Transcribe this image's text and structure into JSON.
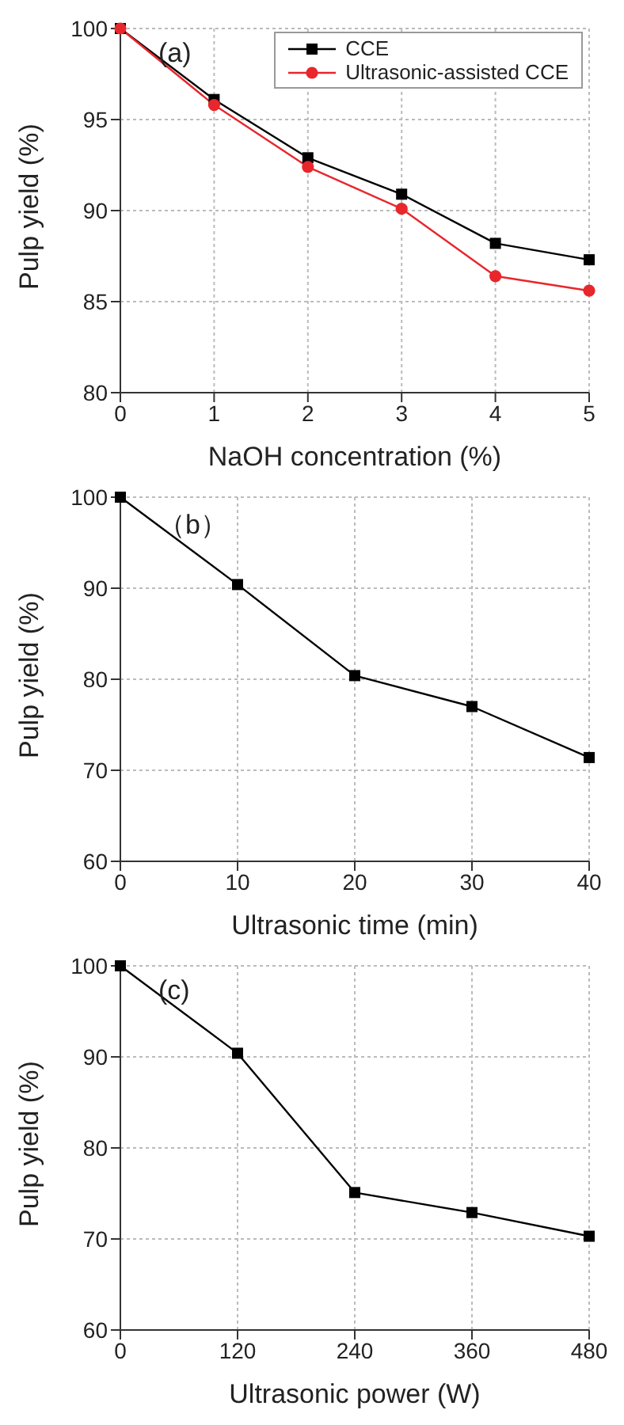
{
  "chart_data": [
    {
      "type": "line",
      "xlabel": "NaOH concentration (%)",
      "ylabel": "Pulp yield (%)",
      "annotations": [
        "(a)"
      ],
      "x": [
        0,
        1,
        2,
        3,
        4,
        5
      ],
      "xlim": [
        0,
        5
      ],
      "xticks": [
        0,
        1,
        2,
        3,
        4,
        5
      ],
      "ylim": [
        80,
        100
      ],
      "yticks": [
        80,
        85,
        90,
        95,
        100
      ],
      "grid": true,
      "legend": "top right",
      "line_style": "solid",
      "series": [
        {
          "name": "CCE",
          "color": "#000000",
          "marker": "square",
          "values": [
            100,
            96.1,
            92.9,
            90.9,
            88.2,
            87.3
          ]
        },
        {
          "name": "Ultrasonic-assisted CCE",
          "color": "#e8262c",
          "marker": "circle",
          "values": [
            100,
            95.8,
            92.4,
            90.1,
            86.4,
            85.6
          ]
        }
      ]
    },
    {
      "type": "line",
      "xlabel": "Ultrasonic time (min)",
      "ylabel": "Pulp yield (%)",
      "annotations": [
        "（b）"
      ],
      "x": [
        0,
        10,
        20,
        30,
        40
      ],
      "xlim": [
        0,
        40
      ],
      "xticks": [
        0,
        10,
        20,
        30,
        40
      ],
      "ylim": [
        60,
        100
      ],
      "yticks": [
        60,
        70,
        80,
        90,
        100
      ],
      "grid": true,
      "marker": "square",
      "line_style": "solid",
      "series": [
        {
          "color": "#000000",
          "values": [
            100,
            90.4,
            80.4,
            77.0,
            71.4
          ]
        }
      ]
    },
    {
      "type": "line",
      "xlabel": "Ultrasonic power (W)",
      "ylabel": "Pulp yield (%)",
      "annotations": [
        "(c)"
      ],
      "x": [
        0,
        120,
        240,
        360,
        480
      ],
      "xlim": [
        0,
        480
      ],
      "xticks": [
        0,
        120,
        240,
        360,
        480
      ],
      "ylim": [
        60,
        100
      ],
      "yticks": [
        60,
        70,
        80,
        90,
        100
      ],
      "grid": true,
      "marker": "square",
      "line_style": "solid",
      "series": [
        {
          "color": "#000000",
          "values": [
            100,
            90.4,
            75.1,
            72.9,
            70.3
          ]
        }
      ]
    }
  ]
}
